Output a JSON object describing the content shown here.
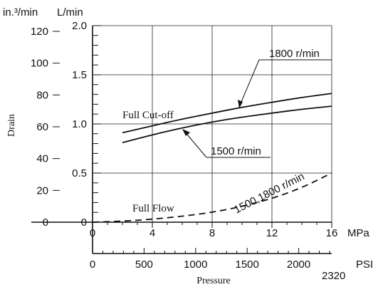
{
  "chart_data": {
    "type": "line",
    "units": {
      "left_outer": "in.³/min",
      "left_inner": "L/min",
      "x_mpa": "MPa",
      "x_psi": "PSI"
    },
    "ylabel": "Drain",
    "xlabel": "Pressure",
    "figure_number": "2320",
    "in3_ticks": [
      "120",
      "100",
      "80",
      "60",
      "40",
      "20",
      "0"
    ],
    "lmin_ticks": [
      "2.0",
      "1.5",
      "1.0",
      "0.5",
      "0"
    ],
    "mpa_ticks": [
      "0",
      "4",
      "8",
      "12",
      "16"
    ],
    "psi_ticks": [
      "0",
      "500",
      "1000",
      "1500",
      "2000"
    ],
    "xlim_mpa": [
      0,
      16
    ],
    "ylim_lmin": [
      0,
      2.0
    ],
    "grid": true,
    "series": [
      {
        "name": "Full Cut-off 1800 r/min",
        "style": "solid",
        "x": [
          2,
          4,
          6,
          8,
          10,
          12,
          14,
          16
        ],
        "y": [
          0.91,
          0.98,
          1.05,
          1.11,
          1.17,
          1.22,
          1.27,
          1.31
        ]
      },
      {
        "name": "Full Cut-off 1500 r/min",
        "style": "solid",
        "x": [
          2,
          4,
          6,
          8,
          10,
          12,
          14,
          16
        ],
        "y": [
          0.81,
          0.89,
          0.96,
          1.02,
          1.07,
          1.11,
          1.15,
          1.18
        ]
      },
      {
        "name": "Full Flow 1500,1800 r/min",
        "style": "dashed",
        "x": [
          0,
          2,
          4,
          6,
          8,
          10,
          12,
          14,
          16
        ],
        "y": [
          0.0,
          0.01,
          0.03,
          0.06,
          0.1,
          0.16,
          0.24,
          0.35,
          0.5
        ]
      }
    ],
    "annotations": {
      "full_cutoff": "Full Cut-off",
      "rpm_1800": "1800 r/min",
      "rpm_1500": "1500 r/min",
      "full_flow": "Full Flow",
      "rpm_both": "1500,1800 r/min"
    }
  }
}
